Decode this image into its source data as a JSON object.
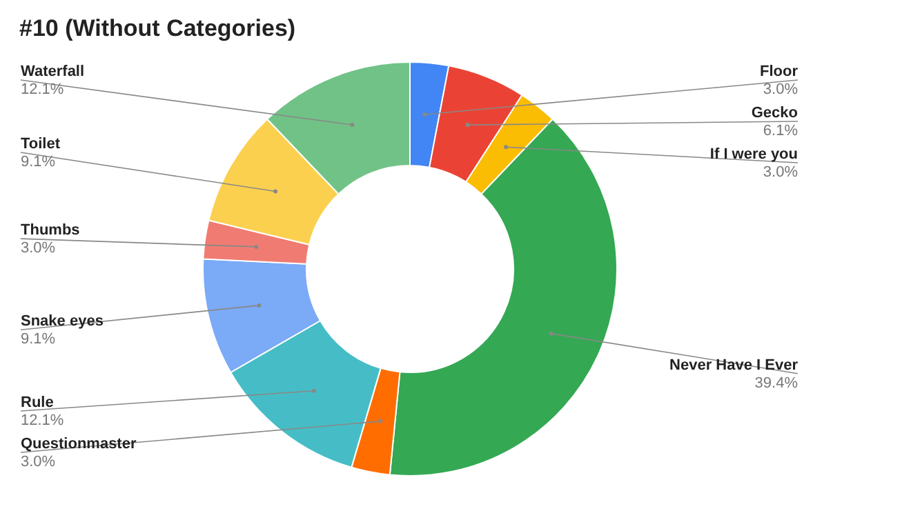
{
  "chart_data": {
    "type": "donut",
    "title": "#10 (Without Categories)",
    "categories": [
      "Floor",
      "Gecko",
      "If I were you",
      "Never Have I Ever",
      "Questionmaster",
      "Rule",
      "Snake eyes",
      "Thumbs",
      "Toilet",
      "Waterfall"
    ],
    "values": [
      3.0,
      6.1,
      3.0,
      39.4,
      3.0,
      12.1,
      9.1,
      3.0,
      9.1,
      12.1
    ],
    "value_labels": [
      "3.0%",
      "6.1%",
      "3.0%",
      "39.4%",
      "3.0%",
      "12.1%",
      "9.1%",
      "3.0%",
      "9.1%",
      "12.1%"
    ],
    "colors": [
      "#4285f4",
      "#ea4335",
      "#fbbc04",
      "#34a853",
      "#ff6d01",
      "#46bdc6",
      "#7baaf7",
      "#f07b72",
      "#fcd04f",
      "#71c287"
    ]
  }
}
